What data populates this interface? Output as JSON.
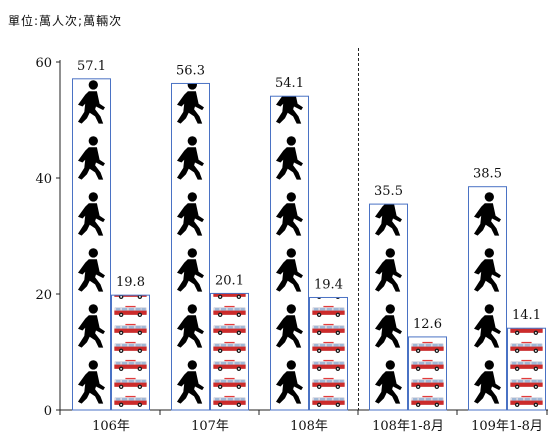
{
  "chart_data": {
    "type": "bar",
    "unit_label": "單位:萬人次;萬輛次",
    "categories": [
      "106年",
      "107年",
      "108年",
      "108年1-8月",
      "109年1-8月"
    ],
    "series": [
      {
        "values": [
          57.1,
          56.3,
          54.1,
          35.5,
          38.5
        ],
        "icon": "walking-person-icon",
        "color": "#000000"
      },
      {
        "values": [
          19.8,
          20.1,
          19.4,
          12.6,
          14.1
        ],
        "icon": "fire-truck-icon",
        "color": "#cc2b2b"
      }
    ],
    "ylim": [
      0,
      60
    ],
    "yticks": [
      0,
      20,
      40,
      60
    ],
    "grid": false,
    "separator_after_category": 2,
    "border_color": "#4a72c4"
  }
}
